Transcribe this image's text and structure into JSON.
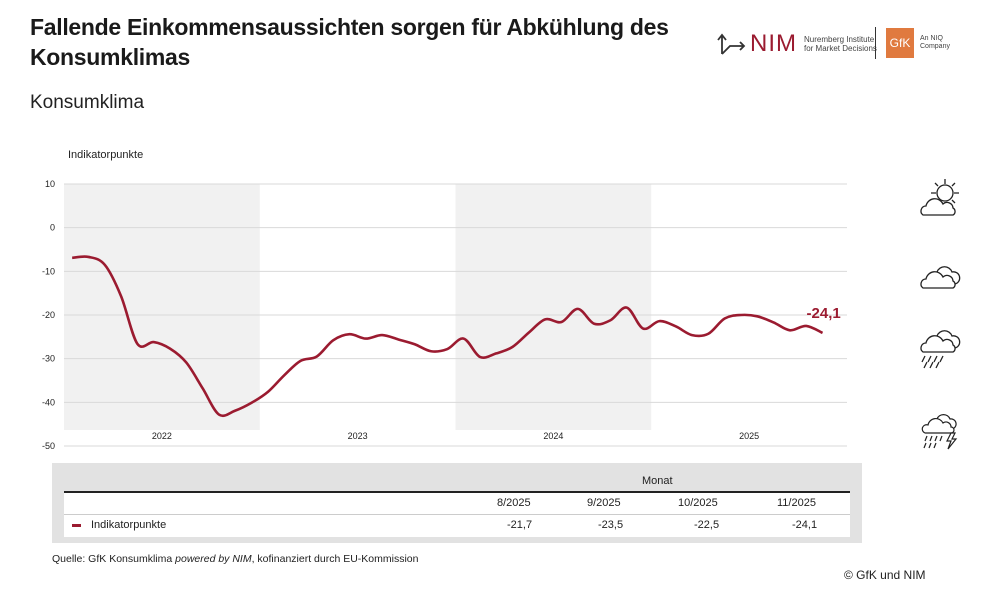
{
  "header": {
    "title": "Fallende Einkommensaussichten sorgen für Abkühlung des Konsumklimas",
    "subtitle": "Konsumklima"
  },
  "logos": {
    "nim_text": "NIM",
    "nim_line1": "Nuremberg Institute",
    "nim_line2": "for Market Decisions",
    "gfk_text": "GfK",
    "gfk_line1": "An NIQ",
    "gfk_line2": "Company"
  },
  "colors": {
    "line": "#9b1b30",
    "band": "#f1f1f1",
    "grid": "#d9d9d9"
  },
  "weather_icons": [
    "sun-cloud-icon",
    "cloud-icon",
    "rain-cloud-icon",
    "thunderstorm-icon"
  ],
  "chart_data": {
    "type": "line",
    "ylabel": "Indikatorpunkte",
    "ylim": [
      -50,
      10
    ],
    "yticks": [
      "10",
      "0",
      "-10",
      "-20",
      "-30",
      "-40",
      "-50"
    ],
    "ytick_values": [
      10,
      0,
      -10,
      -20,
      -30,
      -40,
      -50
    ],
    "years": [
      "2022",
      "2023",
      "2024",
      "2025"
    ],
    "grid": true,
    "last_label": "-24,1",
    "series": [
      {
        "name": "Indikatorpunkte",
        "values": [
          -6.9,
          -6.7,
          -8.5,
          -15.7,
          -26.6,
          -26.2,
          -27.7,
          -30.9,
          -36.8,
          -42.8,
          -41.9,
          -40.1,
          -37.6,
          -33.8,
          -30.5,
          -29.5,
          -25.8,
          -24.4,
          -25.4,
          -24.6,
          -25.6,
          -26.7,
          -28.3,
          -27.8,
          -25.4,
          -29.6,
          -28.8,
          -27.3,
          -24.0,
          -21.0,
          -21.6,
          -18.6,
          -22.0,
          -21.2,
          -18.3,
          -23.1,
          -21.4,
          -22.6,
          -24.6,
          -24.3,
          -20.8,
          -20.0,
          -20.3,
          -21.7,
          -23.5,
          -22.5,
          -24.1
        ]
      }
    ]
  },
  "table": {
    "group_header": "Monat",
    "columns": [
      "8/2025",
      "9/2025",
      "10/2025",
      "11/2025"
    ],
    "row_label": "Indikatorpunkte",
    "values": [
      "-21,7",
      "-23,5",
      "-22,5",
      "-24,1"
    ]
  },
  "footer": {
    "source_prefix": "Quelle: GfK Konsumklima ",
    "source_italic": "powered by NIM",
    "source_suffix": ", kofinanziert durch EU-Kommission",
    "copyright": "© GfK und NIM"
  }
}
